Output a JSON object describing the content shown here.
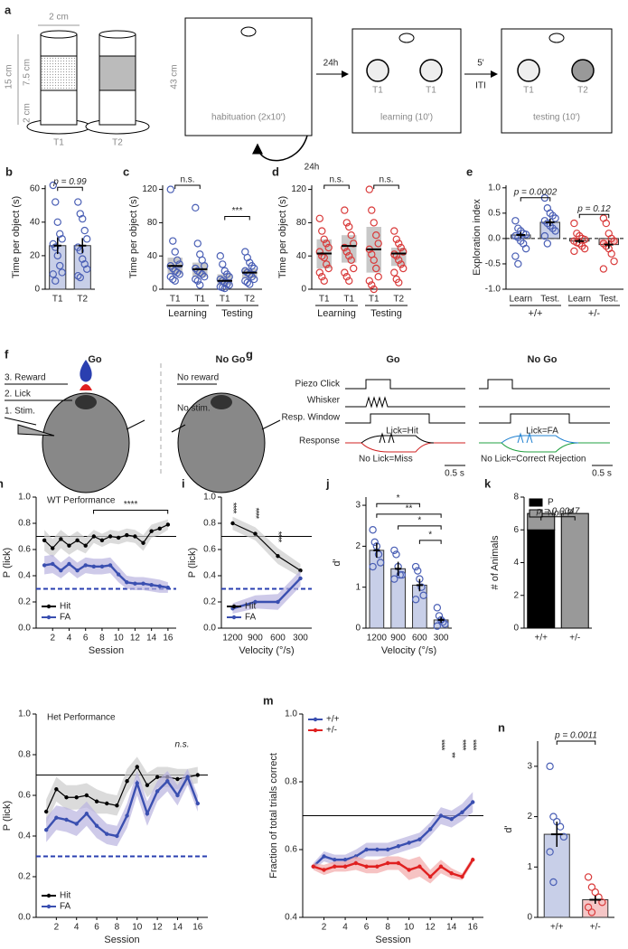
{
  "diagrams": {
    "a": {
      "letter": "a",
      "labels": [
        "2 cm",
        "15 cm",
        "7.5 cm",
        "2 cm",
        "T1",
        "T2",
        "43 cm",
        "habituation (2x10')",
        "24h",
        "T1",
        "T1",
        "learning (10')",
        "5'",
        "ITI",
        "T1",
        "T2",
        "testing (10')",
        "24h"
      ]
    },
    "f": {
      "letter": "f",
      "labels": [
        "Go",
        "No Go",
        "3. Reward",
        "2. Lick",
        "1. Stim.",
        "No reward",
        "No stim."
      ]
    },
    "g": {
      "letter": "g",
      "labels": [
        "Go",
        "No Go",
        "Piezo Click",
        "Whisker",
        "Resp. Window",
        "Response",
        "Lick=Hit",
        "No Lick=Miss",
        "0.5 s",
        "Lick=FA",
        "No Lick=Correct Rejection",
        "0.5 s"
      ]
    }
  },
  "chart_data": [
    {
      "type": "bar",
      "letter": "b",
      "ylabel": "Time per object (s)",
      "categories": [
        "T1",
        "T2"
      ],
      "values": [
        26,
        26
      ],
      "errors": [
        5,
        4.5
      ],
      "points": [
        [
          62,
          52,
          40,
          33,
          30,
          27,
          25,
          20,
          14,
          10,
          9,
          5
        ],
        [
          52,
          45,
          42,
          35,
          30,
          25,
          23,
          18,
          15,
          12,
          8,
          7
        ]
      ],
      "color": "#c8cfe8",
      "point_color": "#4a5fb5",
      "ylim": [
        0,
        62
      ],
      "yticks": [
        0,
        20,
        40,
        60
      ],
      "annotations": [
        "p = 0.99"
      ]
    },
    {
      "type": "box",
      "letter": "c",
      "ylabel": "Time per object (s)",
      "categories": [
        "T1",
        "T1",
        "T1",
        "T2"
      ],
      "groups": [
        "Learning",
        "Testing"
      ],
      "medians": [
        28,
        24,
        10,
        20
      ],
      "q1": [
        18,
        15,
        5,
        13
      ],
      "q3": [
        38,
        32,
        18,
        25
      ],
      "points": [
        [
          120,
          58,
          45,
          35,
          30,
          28,
          25,
          22,
          20,
          18,
          15,
          12,
          10
        ],
        [
          98,
          55,
          42,
          35,
          28,
          25,
          22,
          20,
          18,
          15,
          12,
          10,
          5
        ],
        [
          40,
          30,
          22,
          18,
          15,
          12,
          10,
          8,
          6,
          5,
          3,
          2,
          1
        ],
        [
          45,
          38,
          32,
          28,
          25,
          22,
          20,
          18,
          15,
          12,
          10,
          8,
          6
        ]
      ],
      "color": "#c8c8c8",
      "point_color": "#4a5fb5",
      "ylim": [
        0,
        125
      ],
      "yticks": [
        0,
        40,
        80,
        120
      ],
      "annotations": [
        "n.s.",
        "***"
      ]
    },
    {
      "type": "box",
      "letter": "d",
      "ylabel": "Time per object (s)",
      "categories": [
        "T1",
        "T1",
        "T1",
        "T2"
      ],
      "groups": [
        "Learning",
        "Testing"
      ],
      "medians": [
        43,
        52,
        48,
        43
      ],
      "q1": [
        25,
        32,
        20,
        28
      ],
      "q3": [
        60,
        65,
        75,
        50
      ],
      "points": [
        [
          85,
          70,
          60,
          55,
          50,
          45,
          40,
          38,
          30,
          25,
          20,
          15,
          10
        ],
        [
          95,
          80,
          75,
          65,
          55,
          50,
          45,
          40,
          35,
          25,
          20,
          15,
          10
        ],
        [
          120,
          95,
          80,
          65,
          55,
          48,
          42,
          35,
          25,
          15,
          10,
          5,
          0
        ],
        [
          70,
          60,
          55,
          50,
          45,
          42,
          40,
          35,
          30,
          25,
          20,
          12,
          8
        ]
      ],
      "color": "#c8c8c8",
      "point_color": "#d93a3a",
      "ylim": [
        0,
        125
      ],
      "yticks": [
        0,
        40,
        80,
        120
      ],
      "annotations": [
        "n.s.",
        "n.s."
      ]
    },
    {
      "type": "bar",
      "letter": "e",
      "ylabel": "Exploration index",
      "categories": [
        "Learn",
        "Test.",
        "Learn",
        "Test."
      ],
      "groups": [
        "+/+",
        "+/-"
      ],
      "values": [
        0.07,
        0.32,
        -0.05,
        -0.12
      ],
      "errors": [
        0.06,
        0.07,
        0.04,
        0.08
      ],
      "points": [
        [
          0.35,
          0.2,
          0.15,
          0.1,
          0.08,
          0.05,
          0.02,
          -0.05,
          -0.1,
          -0.2,
          -0.35,
          -0.5
        ],
        [
          0.8,
          0.6,
          0.5,
          0.45,
          0.4,
          0.35,
          0.3,
          0.25,
          0.2,
          0.15,
          0.05,
          -0.1
        ],
        [
          0.3,
          0.1,
          0.05,
          0,
          -0.02,
          -0.05,
          -0.08,
          -0.1,
          -0.15,
          -0.2,
          -0.25
        ],
        [
          0.4,
          0.3,
          0.1,
          0,
          -0.05,
          -0.1,
          -0.15,
          -0.2,
          -0.3,
          -0.45,
          -0.6
        ]
      ],
      "colors": [
        "#c8cfe8",
        "#c8cfe8",
        "#f5c6c6",
        "#f5c6c6"
      ],
      "point_colors": [
        "#4a5fb5",
        "#4a5fb5",
        "#d93a3a",
        "#d93a3a"
      ],
      "ylim": [
        -1,
        1.05
      ],
      "yticks": [
        {
          "value": -1,
          "label": "-1.0"
        },
        -0.5,
        {
          "value": 0,
          "label": "0.0"
        },
        0.5,
        {
          "value": 1,
          "label": "1.0"
        }
      ],
      "zero_line": "dashed",
      "annotations": [
        "p = 0.0002",
        "p = 0.12"
      ]
    },
    {
      "type": "line",
      "letter": "h",
      "title": "WT Performance",
      "ylabel": "P (lick)",
      "xlabel": "Session",
      "x": [
        1,
        2,
        3,
        4,
        5,
        6,
        7,
        8,
        9,
        10,
        11,
        12,
        13,
        14,
        15,
        16
      ],
      "xlim": [
        0,
        17
      ],
      "xticks": [
        2,
        4,
        6,
        8,
        10,
        12,
        14,
        16
      ],
      "ylim": [
        0,
        1
      ],
      "yticks": [
        {
          "value": 0,
          "label": "0.0"
        },
        0.2,
        0.4,
        0.6,
        0.8,
        {
          "value": 1,
          "label": "1.0"
        }
      ],
      "series": [
        {
          "name": "Hit",
          "color": "#000000",
          "values": [
            0.67,
            0.61,
            0.68,
            0.63,
            0.67,
            0.63,
            0.7,
            0.67,
            0.7,
            0.69,
            0.71,
            0.7,
            0.65,
            0.74,
            0.76,
            0.79
          ],
          "errors": [
            0.08,
            0.07,
            0.07,
            0.07,
            0.07,
            0.06,
            0.05,
            0.05,
            0.05,
            0.05,
            0.05,
            0.05,
            0.06,
            0.05,
            0.05,
            0.04
          ],
          "band": "#cccccc"
        },
        {
          "name": "FA",
          "color": "#3a4fb0",
          "values": [
            0.48,
            0.49,
            0.44,
            0.49,
            0.44,
            0.48,
            0.47,
            0.47,
            0.48,
            0.41,
            0.35,
            0.34,
            0.34,
            0.33,
            0.32,
            0.31
          ],
          "errors": [
            0.07,
            0.07,
            0.06,
            0.06,
            0.06,
            0.06,
            0.06,
            0.06,
            0.06,
            0.06,
            0.05,
            0.05,
            0.05,
            0.05,
            0.05,
            0.04
          ],
          "band": "#b9b3e0"
        }
      ],
      "hlines": [
        {
          "value": 0.7,
          "style": "solid",
          "color": "#000000"
        },
        {
          "value": 0.3,
          "style": "dashed",
          "color": "#2a3fb0"
        }
      ],
      "legend": "lower left",
      "annotations": [
        "****"
      ]
    },
    {
      "type": "line",
      "letter": "i",
      "ylabel": "P (lick)",
      "xlabel": "Velocity (°/s)",
      "categories": [
        "1200",
        "900",
        "600",
        "300"
      ],
      "ylim": [
        0,
        1
      ],
      "yticks": [
        {
          "value": 0,
          "label": "0.0"
        },
        0.2,
        0.4,
        0.6,
        0.8,
        {
          "value": 1,
          "label": "1.0"
        }
      ],
      "series": [
        {
          "name": "Hit",
          "color": "#000000",
          "values": [
            0.8,
            0.72,
            0.55,
            0.44
          ],
          "errors": [
            0.05,
            0.05,
            0.06,
            0.05
          ],
          "band": "#cccccc"
        },
        {
          "name": "FA",
          "color": "#3a4fb0",
          "values": [
            0.15,
            0.2,
            0.2,
            0.38
          ],
          "errors": [
            0.04,
            0.05,
            0.06,
            0.06
          ],
          "band": "#b9b3e0"
        }
      ],
      "hlines": [
        {
          "value": 0.7,
          "style": "solid",
          "color": "#000000"
        },
        {
          "value": 0.3,
          "style": "dashed",
          "color": "#2a3fb0"
        }
      ],
      "legend": "lower left",
      "annotations": [
        "****",
        "****",
        "****"
      ]
    },
    {
      "type": "bar",
      "letter": "j",
      "ylabel": "d'",
      "xlabel": "Velocity (°/s)",
      "categories": [
        "1200",
        "900",
        "600",
        "300"
      ],
      "values": [
        1.9,
        1.45,
        1.05,
        0.2
      ],
      "errors": [
        0.18,
        0.17,
        0.15,
        0.07
      ],
      "points": [
        [
          2.4,
          2.1,
          2.0,
          1.8,
          1.6,
          1.5
        ],
        [
          1.9,
          1.8,
          1.5,
          1.3,
          1.3,
          1.2
        ],
        [
          1.5,
          1.4,
          1.2,
          1.0,
          0.8,
          0.7
        ],
        [
          0.5,
          0.3,
          0.2,
          0.15,
          0.1,
          0.05
        ]
      ],
      "color": "#c8cfe8",
      "point_color": "#4a5fb5",
      "ylim": [
        0,
        3.2
      ],
      "yticks": [
        0,
        1,
        2,
        3
      ],
      "annotations": [
        "*",
        "**",
        "*",
        "*"
      ]
    },
    {
      "type": "stacked_bar",
      "letter": "k",
      "ylabel": "# of Animals",
      "categories": [
        "+/+",
        "+/-"
      ],
      "series": [
        {
          "name": "P",
          "color": "#000000",
          "values": [
            6,
            0
          ]
        },
        {
          "name": "Non-P",
          "color": "#999999",
          "values": [
            1,
            7
          ]
        }
      ],
      "ylim": [
        0,
        8
      ],
      "yticks": [
        0,
        2,
        4,
        6,
        8
      ],
      "legend": "upper left",
      "annotations": [
        "p = 0.0047"
      ]
    },
    {
      "type": "line",
      "letter": "l",
      "title": "Het Performance",
      "ylabel": "P (lick)",
      "xlabel": "Session",
      "x": [
        1,
        2,
        3,
        4,
        5,
        6,
        7,
        8,
        9,
        10,
        11,
        12,
        13,
        14,
        15,
        16
      ],
      "xlim": [
        0,
        17
      ],
      "xticks": [
        2,
        4,
        6,
        8,
        10,
        12,
        14,
        16
      ],
      "ylim": [
        0,
        1
      ],
      "yticks": [
        {
          "value": 0,
          "label": "0.0"
        },
        0.2,
        0.4,
        0.6,
        0.8,
        {
          "value": 1,
          "label": "1.0"
        }
      ],
      "series": [
        {
          "name": "Hit",
          "color": "#000000",
          "values": [
            0.52,
            0.63,
            0.59,
            0.59,
            0.6,
            0.57,
            0.56,
            0.55,
            0.67,
            0.74,
            0.65,
            0.69,
            0.69,
            0.68,
            0.69,
            0.7
          ],
          "errors": [
            0.06,
            0.06,
            0.06,
            0.06,
            0.06,
            0.06,
            0.05,
            0.05,
            0.06,
            0.05,
            0.06,
            0.05,
            0.05,
            0.05,
            0.04,
            0.04
          ],
          "band": "#cccccc"
        },
        {
          "name": "FA",
          "color": "#3a4fb0",
          "values": [
            0.43,
            0.49,
            0.48,
            0.46,
            0.51,
            0.45,
            0.41,
            0.4,
            0.5,
            0.66,
            0.51,
            0.62,
            0.67,
            0.6,
            0.69,
            0.56
          ],
          "errors": [
            0.06,
            0.06,
            0.06,
            0.06,
            0.06,
            0.06,
            0.05,
            0.05,
            0.06,
            0.06,
            0.06,
            0.05,
            0.05,
            0.05,
            0.04,
            0.04
          ],
          "band": "#b9b3e0"
        }
      ],
      "hlines": [
        {
          "value": 0.7,
          "style": "solid",
          "color": "#000000"
        },
        {
          "value": 0.3,
          "style": "dashed",
          "color": "#2a3fb0"
        }
      ],
      "legend": "lower left",
      "annotations": [
        "n.s."
      ]
    },
    {
      "type": "line",
      "letter": "m",
      "ylabel": "Fraction of total trials correct",
      "xlabel": "Session",
      "x": [
        1,
        2,
        3,
        4,
        5,
        6,
        7,
        8,
        9,
        10,
        11,
        12,
        13,
        14,
        15,
        16
      ],
      "xlim": [
        0,
        17
      ],
      "xticks": [
        2,
        4,
        6,
        8,
        10,
        12,
        14,
        16
      ],
      "ylim": [
        0.4,
        1
      ],
      "yticks": [
        0.4,
        0.6,
        0.8,
        {
          "value": 1,
          "label": "1.0"
        }
      ],
      "series": [
        {
          "name": "+/+",
          "color": "#3a4fb0",
          "values": [
            0.55,
            0.58,
            0.57,
            0.57,
            0.58,
            0.6,
            0.6,
            0.6,
            0.61,
            0.62,
            0.63,
            0.66,
            0.7,
            0.69,
            0.71,
            0.74
          ],
          "errors": [
            0.01,
            0.015,
            0.015,
            0.015,
            0.02,
            0.02,
            0.02,
            0.02,
            0.02,
            0.02,
            0.02,
            0.02,
            0.025,
            0.025,
            0.025,
            0.03
          ],
          "band": "#b9b3e0"
        },
        {
          "name": "+/-",
          "color": "#e02020",
          "values": [
            0.55,
            0.54,
            0.55,
            0.55,
            0.56,
            0.55,
            0.55,
            0.56,
            0.56,
            0.54,
            0.55,
            0.52,
            0.55,
            0.53,
            0.52,
            0.57
          ],
          "errors": [
            0.01,
            0.015,
            0.015,
            0.015,
            0.02,
            0.02,
            0.02,
            0.02,
            0.02,
            0.03,
            0.03,
            0.02,
            0.02,
            0.015,
            0.01,
            0.01
          ],
          "band": "#f2aaaa"
        }
      ],
      "hlines": [
        {
          "value": 0.7,
          "style": "solid",
          "color": "#000000"
        }
      ],
      "legend": "upper left",
      "annotations": [
        "****",
        "**",
        "****",
        "****"
      ]
    },
    {
      "type": "bar",
      "letter": "n",
      "ylabel": "d'",
      "categories": [
        "+/+",
        "+/-"
      ],
      "values": [
        1.65,
        0.35
      ],
      "errors": [
        0.25,
        0.08
      ],
      "points": [
        [
          3.0,
          2.0,
          1.9,
          1.8,
          1.6,
          1.3,
          0.7
        ],
        [
          0.8,
          0.6,
          0.5,
          0.4,
          0.3,
          0.2,
          0.1
        ]
      ],
      "colors": [
        "#c8cfe8",
        "#f5c6c6"
      ],
      "point_colors": [
        "#4a5fb5",
        "#d93a3a"
      ],
      "ylim": [
        0,
        3.5
      ],
      "yticks": [
        0,
        1,
        2,
        3
      ],
      "annotations": [
        "p = 0.0011"
      ]
    }
  ]
}
